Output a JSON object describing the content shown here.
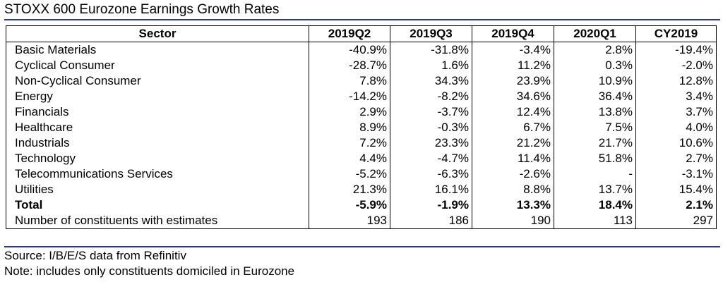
{
  "title": "STOXX 600 Eurozone Earnings Growth Rates",
  "table": {
    "headers": [
      "Sector",
      "2019Q2",
      "2019Q3",
      "2019Q4",
      "2020Q1",
      "CY2019"
    ],
    "rows": [
      {
        "sector": "Basic Materials",
        "values": [
          "-40.9%",
          "-31.8%",
          "-3.4%",
          "2.8%",
          "-19.4%"
        ]
      },
      {
        "sector": "Cyclical Consumer",
        "values": [
          "-28.7%",
          "1.6%",
          "11.2%",
          "0.3%",
          "-2.0%"
        ]
      },
      {
        "sector": "Non-Cyclical Consumer",
        "values": [
          "7.8%",
          "34.3%",
          "23.9%",
          "10.9%",
          "12.8%"
        ]
      },
      {
        "sector": "Energy",
        "values": [
          "-14.2%",
          "-8.2%",
          "34.6%",
          "36.4%",
          "3.4%"
        ]
      },
      {
        "sector": "Financials",
        "values": [
          "2.9%",
          "-3.7%",
          "12.4%",
          "13.8%",
          "3.7%"
        ]
      },
      {
        "sector": "Healthcare",
        "values": [
          "8.9%",
          "-0.3%",
          "6.7%",
          "7.5%",
          "4.0%"
        ]
      },
      {
        "sector": "Industrials",
        "values": [
          "7.2%",
          "23.3%",
          "21.2%",
          "21.7%",
          "10.6%"
        ]
      },
      {
        "sector": "Technology",
        "values": [
          "4.4%",
          "-4.7%",
          "11.4%",
          "51.8%",
          "2.7%"
        ]
      },
      {
        "sector": "Telecommunications Services",
        "values": [
          "-5.2%",
          "-6.3%",
          "-2.6%",
          "-",
          "-3.1%"
        ]
      },
      {
        "sector": "Utilities",
        "values": [
          "21.3%",
          "16.1%",
          "8.8%",
          "13.7%",
          "15.4%"
        ]
      }
    ],
    "total": {
      "sector": "Total",
      "values": [
        "-5.9%",
        "-1.9%",
        "13.3%",
        "18.4%",
        "2.1%"
      ]
    },
    "constituents": {
      "sector": "Number of constituents with estimates",
      "values": [
        "193",
        "186",
        "190",
        "113",
        "297"
      ]
    }
  },
  "source": "Source: I/B/E/S data from Refinitiv",
  "note": "Note: includes only constituents domiciled in Eurozone",
  "colors": {
    "rule": "#2c3a8c",
    "text": "#000000",
    "background": "#ffffff"
  }
}
